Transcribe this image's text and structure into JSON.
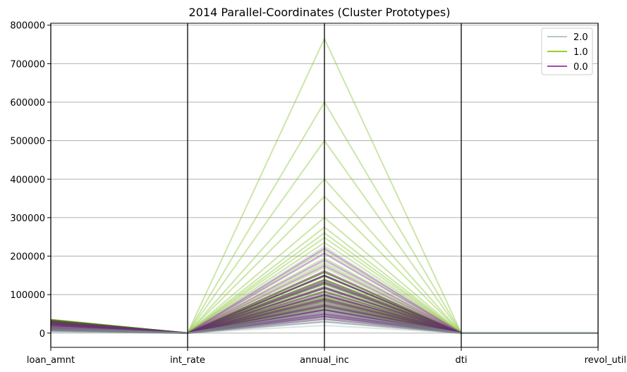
{
  "chart_data": {
    "type": "line",
    "subtype": "parallel-coordinates",
    "title": "2014 Parallel-Coordinates (Cluster Prototypes)",
    "xlabel": "",
    "ylabel": "",
    "categories": [
      "loan_amnt",
      "int_rate",
      "annual_inc",
      "dti",
      "revol_util"
    ],
    "ylim": [
      -37000,
      805000
    ],
    "yticks": [
      0,
      100000,
      200000,
      300000,
      400000,
      500000,
      600000,
      700000,
      800000
    ],
    "ytick_labels": [
      "0",
      "100000",
      "200000",
      "300000",
      "400000",
      "500000",
      "600000",
      "700000",
      "800000"
    ],
    "grid": true,
    "legend_position": "top-right",
    "legend": [
      {
        "label": "2.0",
        "color": "#b5c9c6"
      },
      {
        "label": "1.0",
        "color": "#9acd32"
      },
      {
        "label": "0.0",
        "color": "#a04aa8"
      }
    ],
    "series": [
      {
        "name": "2.0",
        "color": "#9fb8b4",
        "opacity": 0.35,
        "width": 2.2,
        "lines": [
          {
            "values": [
              3000,
              14,
              20000,
              15,
              50
            ]
          },
          {
            "values": [
              4000,
              14,
              28000,
              15,
              50
            ]
          },
          {
            "values": [
              5000,
              14,
              35000,
              15,
              50
            ]
          },
          {
            "values": [
              6000,
              14,
              42000,
              15,
              50
            ]
          },
          {
            "values": [
              7000,
              14,
              50000,
              15,
              50
            ]
          },
          {
            "values": [
              8000,
              14,
              58000,
              15,
              50
            ]
          },
          {
            "values": [
              9000,
              14,
              65000,
              15,
              50
            ]
          },
          {
            "values": [
              10000,
              14,
              72000,
              15,
              50
            ]
          },
          {
            "values": [
              11000,
              14,
              80000,
              15,
              50
            ]
          },
          {
            "values": [
              12000,
              14,
              90000,
              15,
              50
            ]
          },
          {
            "values": [
              13000,
              14,
              100000,
              15,
              50
            ]
          },
          {
            "values": [
              14000,
              14,
              110000,
              15,
              50
            ]
          },
          {
            "values": [
              15000,
              14,
              125000,
              15,
              50
            ]
          },
          {
            "values": [
              16000,
              14,
              140000,
              15,
              50
            ]
          },
          {
            "values": [
              18000,
              14,
              160000,
              15,
              50
            ]
          },
          {
            "values": [
              20000,
              14,
              185000,
              15,
              50
            ]
          },
          {
            "values": [
              22000,
              14,
              205000,
              15,
              50
            ]
          },
          {
            "values": [
              24000,
              14,
              225000,
              15,
              50
            ]
          }
        ]
      },
      {
        "name": "1.0",
        "color": "#8fc73e",
        "opacity": 0.45,
        "width": 2.0,
        "lines": [
          {
            "values": [
              35000,
              14,
              765000,
              15,
              50
            ]
          },
          {
            "values": [
              35000,
              14,
              600000,
              15,
              50
            ]
          },
          {
            "values": [
              35000,
              14,
              500000,
              15,
              50
            ]
          },
          {
            "values": [
              35000,
              14,
              400000,
              15,
              50
            ]
          },
          {
            "values": [
              34000,
              14,
              355000,
              15,
              50
            ]
          },
          {
            "values": [
              33000,
              14,
              300000,
              15,
              50
            ]
          },
          {
            "values": [
              32000,
              14,
              275000,
              15,
              50
            ]
          },
          {
            "values": [
              31000,
              14,
              260000,
              15,
              50
            ]
          },
          {
            "values": [
              30000,
              14,
              248000,
              15,
              50
            ]
          },
          {
            "values": [
              30000,
              14,
              235000,
              15,
              50
            ]
          },
          {
            "values": [
              29000,
              14,
              215000,
              15,
              50
            ]
          },
          {
            "values": [
              28000,
              14,
              195000,
              15,
              50
            ]
          },
          {
            "values": [
              27000,
              14,
              180000,
              15,
              50
            ]
          },
          {
            "values": [
              26000,
              14,
              170000,
              15,
              50
            ]
          },
          {
            "values": [
              25000,
              14,
              160000,
              15,
              50
            ]
          },
          {
            "values": [
              24000,
              14,
              150000,
              15,
              50
            ]
          },
          {
            "values": [
              23000,
              14,
              140000,
              15,
              50
            ]
          },
          {
            "values": [
              22000,
              14,
              130000,
              15,
              50
            ]
          },
          {
            "values": [
              21000,
              14,
              120000,
              15,
              50
            ]
          },
          {
            "values": [
              20000,
              14,
              110000,
              15,
              50
            ]
          },
          {
            "values": [
              18000,
              14,
              100000,
              15,
              50
            ]
          },
          {
            "values": [
              16000,
              14,
              92000,
              15,
              50
            ]
          },
          {
            "values": [
              14000,
              14,
              85000,
              15,
              50
            ]
          }
        ]
      },
      {
        "name": "0.0",
        "color": "#9b4fa6",
        "opacity": 0.5,
        "width": 2.0,
        "lines": [
          {
            "values": [
              25000,
              14,
              220000,
              15,
              50
            ]
          },
          {
            "values": [
              24000,
              14,
              208000,
              15,
              50
            ]
          },
          {
            "values": [
              22000,
              14,
              190000,
              15,
              50
            ]
          },
          {
            "values": [
              20000,
              14,
              175000,
              15,
              50
            ]
          },
          {
            "values": [
              28000,
              14,
              162000,
              15,
              50
            ]
          },
          {
            "values": [
              26000,
              14,
              150000,
              15,
              50
            ]
          },
          {
            "values": [
              19000,
              14,
              135000,
              15,
              50
            ]
          },
          {
            "values": [
              18000,
              14,
              120000,
              15,
              50
            ]
          },
          {
            "values": [
              16000,
              14,
              105000,
              15,
              50
            ]
          },
          {
            "values": [
              15000,
              14,
              95000,
              15,
              50
            ]
          },
          {
            "values": [
              14000,
              14,
              88000,
              15,
              50
            ]
          },
          {
            "values": [
              13000,
              14,
              78000,
              15,
              50
            ]
          },
          {
            "values": [
              12000,
              14,
              70000,
              15,
              50
            ]
          },
          {
            "values": [
              11000,
              14,
              62000,
              15,
              50
            ]
          },
          {
            "values": [
              10000,
              14,
              55000,
              15,
              50
            ]
          },
          {
            "values": [
              9000,
              14,
              48000,
              15,
              50
            ]
          },
          {
            "values": [
              8000,
              14,
              42000,
              15,
              50
            ]
          },
          {
            "values": [
              12000,
              14,
              36000,
              15,
              50
            ]
          }
        ]
      },
      {
        "name": "",
        "color": "#4f6a1a",
        "opacity": 0.6,
        "width": 2.2,
        "lines": [
          {
            "values": [
              34000,
              14,
              158000,
              15,
              50
            ]
          },
          {
            "values": [
              33000,
              14,
              148000,
              15,
              50
            ]
          },
          {
            "values": [
              32000,
              14,
              138000,
              15,
              50
            ]
          },
          {
            "values": [
              31000,
              14,
              128000,
              15,
              50
            ]
          },
          {
            "values": [
              30000,
              14,
              118000,
              15,
              50
            ]
          },
          {
            "values": [
              29000,
              14,
              108000,
              15,
              50
            ]
          },
          {
            "values": [
              28000,
              14,
              98000,
              15,
              50
            ]
          },
          {
            "values": [
              27000,
              14,
              90000,
              15,
              50
            ]
          },
          {
            "values": [
              26000,
              14,
              82000,
              15,
              50
            ]
          },
          {
            "values": [
              25000,
              14,
              75000,
              15,
              50
            ]
          },
          {
            "values": [
              24000,
              14,
              68000,
              15,
              50
            ]
          },
          {
            "values": [
              23000,
              14,
              60000,
              15,
              50
            ]
          }
        ]
      },
      {
        "name": "",
        "color": "#6a2a7e",
        "opacity": 0.6,
        "width": 2.2,
        "lines": [
          {
            "values": [
              30000,
              14,
              150000,
              15,
              50
            ]
          },
          {
            "values": [
              27000,
              14,
              132000,
              15,
              50
            ]
          },
          {
            "values": [
              24000,
              14,
              116000,
              15,
              50
            ]
          },
          {
            "values": [
              21000,
              14,
              100000,
              15,
              50
            ]
          },
          {
            "values": [
              18000,
              14,
              86000,
              15,
              50
            ]
          },
          {
            "values": [
              15000,
              14,
              72000,
              15,
              50
            ]
          },
          {
            "values": [
              12000,
              14,
              60000,
              15,
              50
            ]
          },
          {
            "values": [
              10000,
              14,
              50000,
              15,
              50
            ]
          },
          {
            "values": [
              8000,
              14,
              44000,
              15,
              50
            ]
          }
        ]
      },
      {
        "name": "",
        "color": "#7c8c86",
        "opacity": 0.55,
        "width": 2.0,
        "lines": [
          {
            "values": [
              6000,
              14,
              30000,
              15,
              50
            ]
          },
          {
            "values": [
              8000,
              14,
              38000,
              15,
              50
            ]
          },
          {
            "values": [
              10000,
              14,
              46000,
              15,
              50
            ]
          },
          {
            "values": [
              12000,
              14,
              54000,
              15,
              50
            ]
          },
          {
            "values": [
              16000,
              14,
              64000,
              15,
              50
            ]
          }
        ]
      }
    ]
  }
}
